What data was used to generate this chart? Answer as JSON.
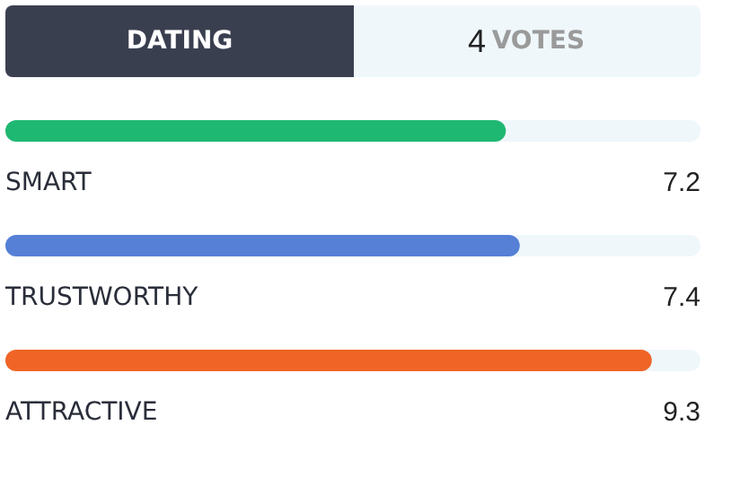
{
  "chart_data": {
    "type": "bar",
    "orientation": "horizontal",
    "title": "DATING",
    "subtitle": "4 VOTES",
    "categories": [
      "SMART",
      "TRUSTWORTHY",
      "ATTRACTIVE"
    ],
    "values": [
      7.2,
      7.4,
      9.3
    ],
    "colors": [
      "#1fb872",
      "#5580d6",
      "#f06526"
    ],
    "xlim": [
      0,
      10
    ],
    "data_labels": true
  }
}
